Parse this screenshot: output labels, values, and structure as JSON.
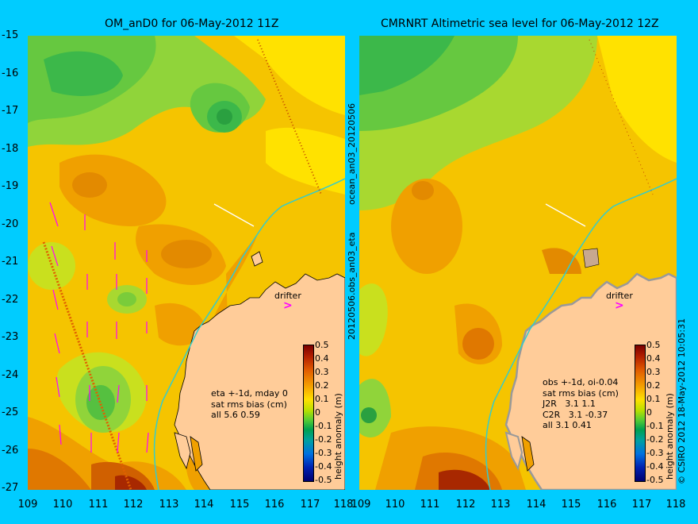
{
  "left_panel": {
    "title": "OM_anD0 for 06-May-2012 11Z",
    "stats": "eta +-1d, mday 0\nsat rms bias (cm)\nall 5.6 0.59",
    "drifter": "drifter",
    "side_label_top": "ocean_an03_20120506",
    "side_label_bottom": "20120506.obs_an03_eta"
  },
  "right_panel": {
    "title": "CMRNRT Altimetric sea level  for 06-May-2012 12Z",
    "stats": "obs +-1d, oi-0.04\nsat rms bias (cm)\nJ2R   3.1 1.1\nC2R   3.1 -0.37\nall 3.1 0.41",
    "drifter": "drifter",
    "side_label": "© CSIRO 2012  18-May-2012 10:05:31"
  },
  "colorbar": {
    "label": "height anomaly (m)",
    "ticks": [
      "0.5",
      "0.4",
      "0.3",
      "0.2",
      "0.1",
      "0",
      "-0.1",
      "-0.2",
      "-0.3",
      "-0.4",
      "-0.5"
    ],
    "colors": {
      "high": "#7a0000",
      "mid": "#ffe000",
      "zero": "#55cc33",
      "low": "#000070"
    }
  },
  "axes": {
    "lat_ticks": [
      "-15",
      "-16",
      "-17",
      "-18",
      "-19",
      "-20",
      "-21",
      "-22",
      "-23",
      "-24",
      "-25",
      "-26",
      "-27"
    ],
    "lon_ticks": [
      "109",
      "110",
      "111",
      "112",
      "113",
      "114",
      "115",
      "116",
      "117",
      "118"
    ]
  },
  "colors": {
    "background": "#00ccff",
    "land": "#ffcc99",
    "coastline": "#000000",
    "isobath": "#33cccc",
    "vectors": "#ff00ff"
  }
}
